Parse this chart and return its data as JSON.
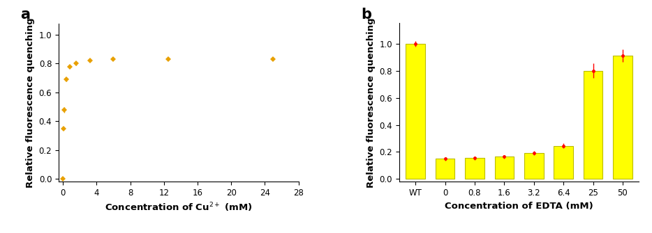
{
  "panel_a": {
    "x": [
      0,
      0.1,
      0.2,
      0.4,
      0.8,
      1.6,
      3.2,
      6.0,
      12.5,
      25.0
    ],
    "y": [
      0.0,
      0.35,
      0.48,
      0.69,
      0.78,
      0.8,
      0.82,
      0.83,
      0.83,
      0.83
    ],
    "yerr": [
      0.005,
      0.01,
      0.02,
      0.015,
      0.01,
      0.01,
      0.005,
      0.005,
      0.005,
      0.005
    ],
    "color": "#E8A000",
    "xlabel": "Concentration of Cu$^{2+}$ (mM)",
    "ylabel": "Relative fluorescence quenching",
    "xlim": [
      -0.5,
      28
    ],
    "ylim": [
      -0.02,
      1.08
    ],
    "xticks": [
      0,
      4,
      8,
      12,
      16,
      20,
      24,
      28
    ],
    "yticks": [
      0.0,
      0.2,
      0.4,
      0.6,
      0.8,
      1.0
    ],
    "label": "a"
  },
  "panel_b": {
    "categories": [
      "WT",
      "0",
      "0.8",
      "1.6",
      "3.2",
      "6.4",
      "25",
      "50"
    ],
    "values": [
      1.0,
      0.15,
      0.155,
      0.165,
      0.19,
      0.245,
      0.8,
      0.91
    ],
    "yerr": [
      0.02,
      0.012,
      0.012,
      0.012,
      0.015,
      0.018,
      0.055,
      0.045
    ],
    "bar_color": "#FFFF00",
    "bar_edgecolor": "#BBBB00",
    "dot_color": "#FF0000",
    "xlabel": "Concentration of EDTA (mM)",
    "ylabel": "Relative fluorescence quenching",
    "ylim": [
      -0.02,
      1.15
    ],
    "yticks": [
      0.0,
      0.2,
      0.4,
      0.6,
      0.8,
      1.0
    ],
    "label": "b"
  },
  "background_color": "#ffffff",
  "label_fontsize": 15,
  "axis_label_fontsize": 9.5,
  "tick_fontsize": 8.5
}
